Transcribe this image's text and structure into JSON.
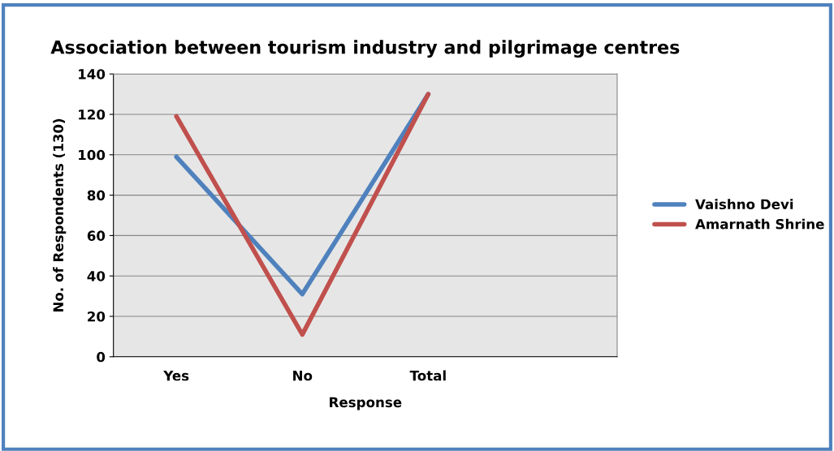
{
  "chart_data": {
    "type": "line",
    "title": "Association between tourism industry and pilgrimage centres",
    "xlabel": "Response",
    "ylabel": "No. of Respondents (130)",
    "categories": [
      "Yes",
      "No",
      "Total",
      null
    ],
    "series": [
      {
        "name": "Vaishno Devi",
        "color": "#4f81bd",
        "values": [
          99,
          31,
          130,
          null
        ]
      },
      {
        "name": "Amarnath Shrine",
        "color": "#c0504d",
        "values": [
          119,
          11,
          130,
          null
        ]
      }
    ],
    "ylim": [
      0,
      140
    ],
    "yticks": [
      0,
      20,
      40,
      60,
      80,
      100,
      120,
      140
    ],
    "grid": "y",
    "legend": "right",
    "marker": "none",
    "line_style": "solid"
  }
}
